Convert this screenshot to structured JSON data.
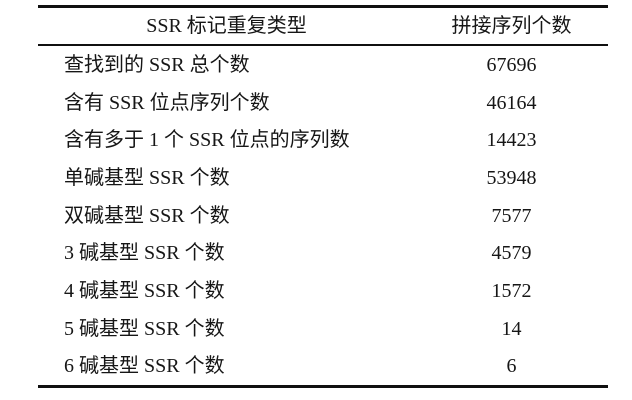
{
  "table": {
    "columns": [
      {
        "label": "SSR 标记重复类型"
      },
      {
        "label": "拼接序列个数"
      }
    ],
    "rows": [
      {
        "label": "查找到的 SSR 总个数",
        "value": "67696"
      },
      {
        "label": "含有 SSR 位点序列个数",
        "value": "46164"
      },
      {
        "label": "含有多于 1 个 SSR 位点的序列数",
        "value": "14423"
      },
      {
        "label": "单碱基型 SSR 个数",
        "value": "53948"
      },
      {
        "label": "双碱基型 SSR 个数",
        "value": "7577"
      },
      {
        "label": "3 碱基型 SSR 个数",
        "value": "4579"
      },
      {
        "label": "4 碱基型 SSR 个数",
        "value": "1572"
      },
      {
        "label": "5 碱基型 SSR 个数",
        "value": "14"
      },
      {
        "label": "6 碱基型 SSR 个数",
        "value": "6"
      }
    ],
    "colors": {
      "text": "#161616",
      "rule": "#101010",
      "background": "#ffffff"
    }
  }
}
